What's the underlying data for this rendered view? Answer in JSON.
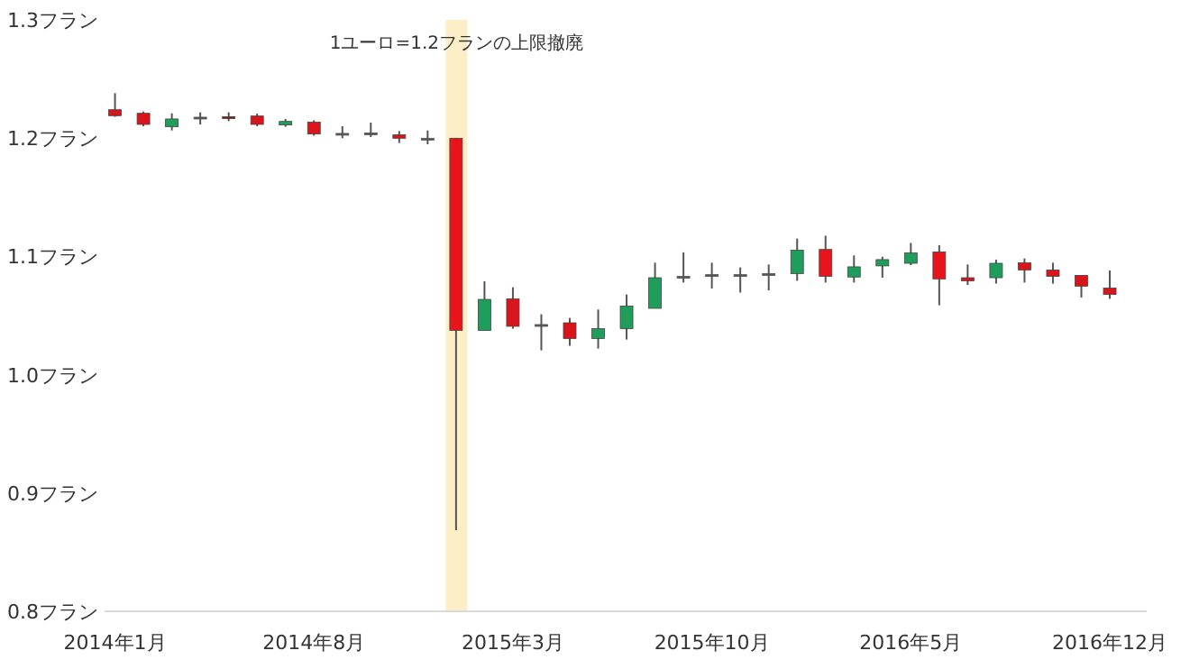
{
  "chart_data": {
    "type": "candlestick",
    "x": [
      "2014-01",
      "2014-02",
      "2014-03",
      "2014-04",
      "2014-05",
      "2014-06",
      "2014-07",
      "2014-08",
      "2014-09",
      "2014-10",
      "2014-11",
      "2014-12",
      "2015-01",
      "2015-02",
      "2015-03",
      "2015-04",
      "2015-05",
      "2015-06",
      "2015-07",
      "2015-08",
      "2015-09",
      "2015-10",
      "2015-11",
      "2015-12",
      "2016-01",
      "2016-02",
      "2016-03",
      "2016-04",
      "2016-05",
      "2016-06",
      "2016-07",
      "2016-08",
      "2016-09",
      "2016-10",
      "2016-11",
      "2016-12"
    ],
    "ohlc": [
      [
        1.224,
        1.238,
        1.218,
        1.219
      ],
      [
        1.221,
        1.2225,
        1.21,
        1.2116
      ],
      [
        1.2096,
        1.221,
        1.2065,
        1.2162
      ],
      [
        1.2177,
        1.2218,
        1.2116,
        1.2177
      ],
      [
        1.2181,
        1.2218,
        1.2143,
        1.2181
      ],
      [
        1.2187,
        1.2207,
        1.21,
        1.2116
      ],
      [
        1.2111,
        1.2162,
        1.2096,
        1.2141
      ],
      [
        1.2136,
        1.2151,
        1.202,
        1.2035
      ],
      [
        1.204,
        1.2101,
        1.1999,
        1.204
      ],
      [
        1.2044,
        1.2131,
        1.2009,
        1.2044
      ],
      [
        1.2029,
        1.206,
        1.1959,
        1.1999
      ],
      [
        1.1999,
        1.2065,
        1.1948,
        1.1999
      ],
      [
        1.1999,
        1.2001,
        0.8686,
        1.0375
      ],
      [
        1.0375,
        1.079,
        1.0375,
        1.0637
      ],
      [
        1.0642,
        1.0739,
        1.0389,
        1.0409
      ],
      [
        1.0424,
        1.0511,
        1.0206,
        1.0424
      ],
      [
        1.0439,
        1.048,
        1.0245,
        1.0306
      ],
      [
        1.0306,
        1.0551,
        1.0221,
        1.0389
      ],
      [
        1.0389,
        1.0678,
        1.0297,
        1.0581
      ],
      [
        1.0561,
        1.0947,
        1.0561,
        1.082
      ],
      [
        1.0831,
        1.1034,
        1.0779,
        1.0831
      ],
      [
        1.0846,
        1.0947,
        1.0729,
        1.0846
      ],
      [
        1.0846,
        1.0907,
        1.0694,
        1.0846
      ],
      [
        1.0855,
        1.0932,
        1.0713,
        1.0855
      ],
      [
        1.0855,
        1.1151,
        1.0794,
        1.1053
      ],
      [
        1.1059,
        1.1175,
        1.0779,
        1.0831
      ],
      [
        1.0826,
        1.1008,
        1.0779,
        1.0912
      ],
      [
        1.092,
        1.0998,
        1.082,
        1.0973
      ],
      [
        1.0942,
        1.1114,
        1.0927,
        1.1029
      ],
      [
        1.1038,
        1.1095,
        1.0587,
        1.081
      ],
      [
        1.082,
        1.0932,
        1.0759,
        1.0794
      ],
      [
        1.082,
        1.0973,
        1.077,
        1.0942
      ],
      [
        1.0947,
        1.0983,
        1.0779,
        1.0886
      ],
      [
        1.0886,
        1.0947,
        1.077,
        1.0831
      ],
      [
        1.084,
        1.084,
        1.0652,
        1.0749
      ],
      [
        1.0733,
        1.0881,
        1.0642,
        1.0678
      ]
    ],
    "colors": [
      "#d9141b",
      "#d9141b",
      "#1e9e5a",
      "#555555",
      "#8b1a1a",
      "#d9141b",
      "#1e9e5a",
      "#d9141b",
      "#555555",
      "#555555",
      "#d9141b",
      "#555555",
      "#e8141b",
      "#1e9e5a",
      "#d9141b",
      "#555555",
      "#d9141b",
      "#1e9e5a",
      "#1e9e5a",
      "#1e9e5a",
      "#555555",
      "#555555",
      "#555555",
      "#555555",
      "#1e9e5a",
      "#e8141b",
      "#1e9e5a",
      "#1e9e5a",
      "#1e9e5a",
      "#e8141b",
      "#d9141b",
      "#1e9e5a",
      "#d9141b",
      "#d9141b",
      "#d9141b",
      "#d9141b"
    ],
    "xlim": [
      "2013-12-20",
      "2017-01-10"
    ],
    "xticks": [
      {
        "value": "2014-01",
        "label": "2014年1月"
      },
      {
        "value": "2014-08",
        "label": "2014年8月"
      },
      {
        "value": "2015-03",
        "label": "2015年3月"
      },
      {
        "value": "2015-10",
        "label": "2015年10月"
      },
      {
        "value": "2016-05",
        "label": "2016年5月"
      },
      {
        "value": "2016-12",
        "label": "2016年12月"
      }
    ],
    "ylim": [
      0.8,
      1.3
    ],
    "yticks": [
      {
        "value": 0.8,
        "label": "0.8フラン"
      },
      {
        "value": 0.9,
        "label": "0.9フラン"
      },
      {
        "value": 1.0,
        "label": "1.0フラン"
      },
      {
        "value": 1.1,
        "label": "1.1フラン"
      },
      {
        "value": 1.2,
        "label": "1.2フラン"
      },
      {
        "value": 1.3,
        "label": "1.3フラン"
      }
    ],
    "bands": [
      {
        "axis": "x",
        "from": "2014-12-20",
        "to": "2015-01-13",
        "label": "1ユーロ=1.2フランの上限撤廃",
        "color": "#fcefc7"
      }
    ]
  }
}
